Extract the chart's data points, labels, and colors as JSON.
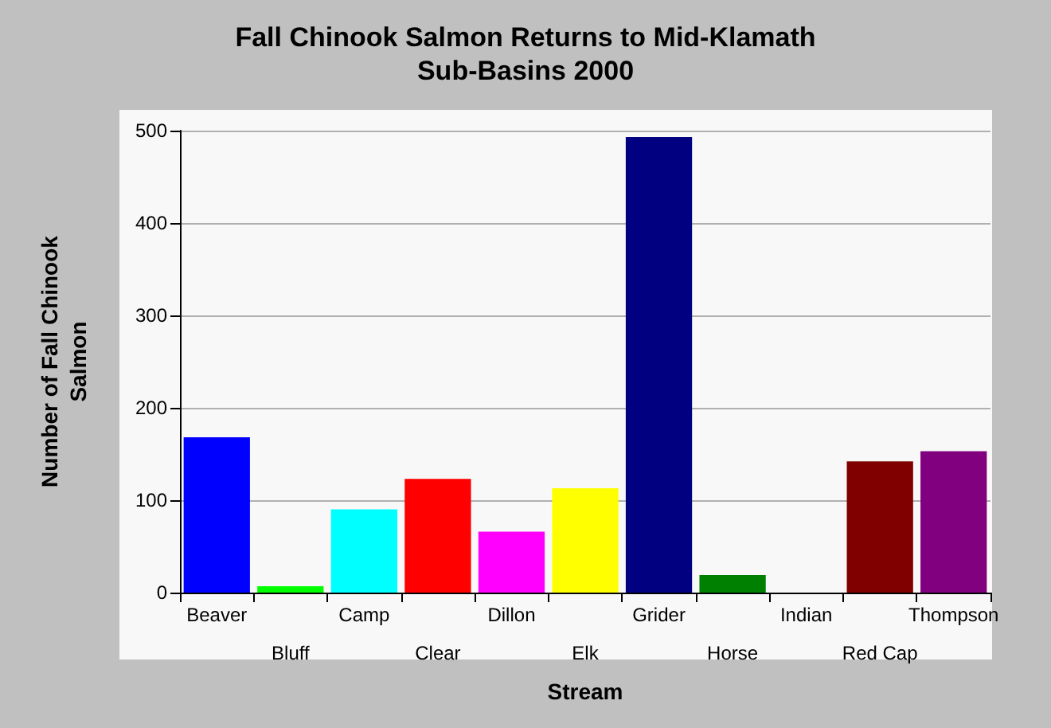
{
  "chart_data": {
    "type": "bar",
    "title": "Fall Chinook Salmon Returns to Mid-Klamath\nSub-Basins 2000",
    "xlabel": "Stream",
    "ylabel": "Number of Fall Chinook\nSalmon",
    "categories": [
      "Beaver",
      "Bluff",
      "Camp",
      "Clear",
      "Dillon",
      "Elk",
      "Grider",
      "Horse",
      "Indian",
      "Red Cap",
      "Thompson"
    ],
    "values": [
      168,
      7,
      90,
      123,
      66,
      113,
      493,
      19,
      0,
      142,
      153
    ],
    "colors": [
      "#0000ff",
      "#00ff00",
      "#00ffff",
      "#ff0000",
      "#ff00ff",
      "#ffff00",
      "#000080",
      "#008000",
      "#808080",
      "#800000",
      "#800080"
    ],
    "ylim": [
      0,
      500
    ],
    "yticks": [
      0,
      100,
      200,
      300,
      400,
      500
    ],
    "grid": "y"
  }
}
